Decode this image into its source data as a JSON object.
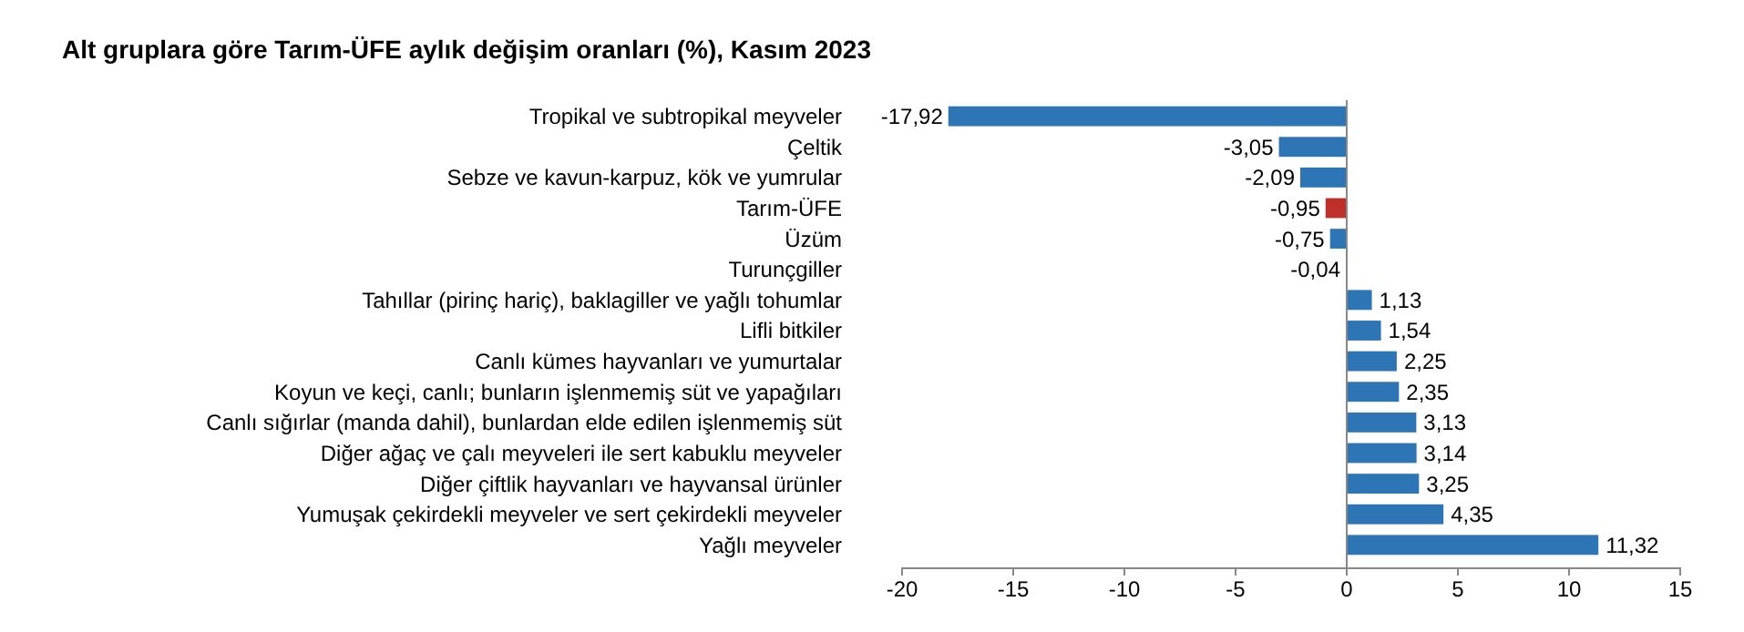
{
  "chart_data": {
    "type": "bar",
    "orientation": "horizontal",
    "title": "Alt gruplara göre Tarım-ÜFE aylık değişim oranları (%), Kasım 2023",
    "categories": [
      "Tropikal ve subtropikal meyveler",
      "Çeltik",
      "Sebze ve kavun-karpuz, kök ve yumrular",
      "Tarım-ÜFE",
      "Üzüm",
      "Turunçgiller",
      "Tahıllar (pirinç hariç), baklagiller ve yağlı tohumlar",
      "Lifli bitkiler",
      "Canlı kümes hayvanları ve yumurtalar",
      "Koyun ve keçi, canlı; bunların işlenmemiş süt ve yapağıları",
      "Canlı sığırlar (manda dahil), bunlardan elde edilen işlenmemiş süt",
      "Diğer ağaç ve çalı meyveleri ile sert kabuklu meyveler",
      "Diğer çiftlik hayvanları ve hayvansal ürünler",
      "Yumuşak çekirdekli meyveler ve sert çekirdekli meyveler",
      "Yağlı meyveler"
    ],
    "values": [
      -17.92,
      -3.05,
      -2.09,
      -0.95,
      -0.75,
      -0.04,
      1.13,
      1.54,
      2.25,
      2.35,
      3.13,
      3.14,
      3.25,
      4.35,
      11.32
    ],
    "value_labels": [
      "-17,92",
      "-3,05",
      "-2,09",
      "-0,95",
      "-0,75",
      "-0,04",
      "1,13",
      "1,54",
      "2,25",
      "2,35",
      "3,13",
      "3,14",
      "3,25",
      "4,35",
      "11,32"
    ],
    "colors": [
      "#2e75b6",
      "#2e75b6",
      "#2e75b6",
      "#c0302b",
      "#2e75b6",
      "#2e75b6",
      "#2e75b6",
      "#2e75b6",
      "#2e75b6",
      "#2e75b6",
      "#2e75b6",
      "#2e75b6",
      "#2e75b6",
      "#2e75b6",
      "#2e75b6"
    ],
    "xlim": [
      -20,
      15
    ],
    "xticks": [
      -20,
      -15,
      -10,
      -5,
      0,
      5,
      10,
      15
    ]
  }
}
